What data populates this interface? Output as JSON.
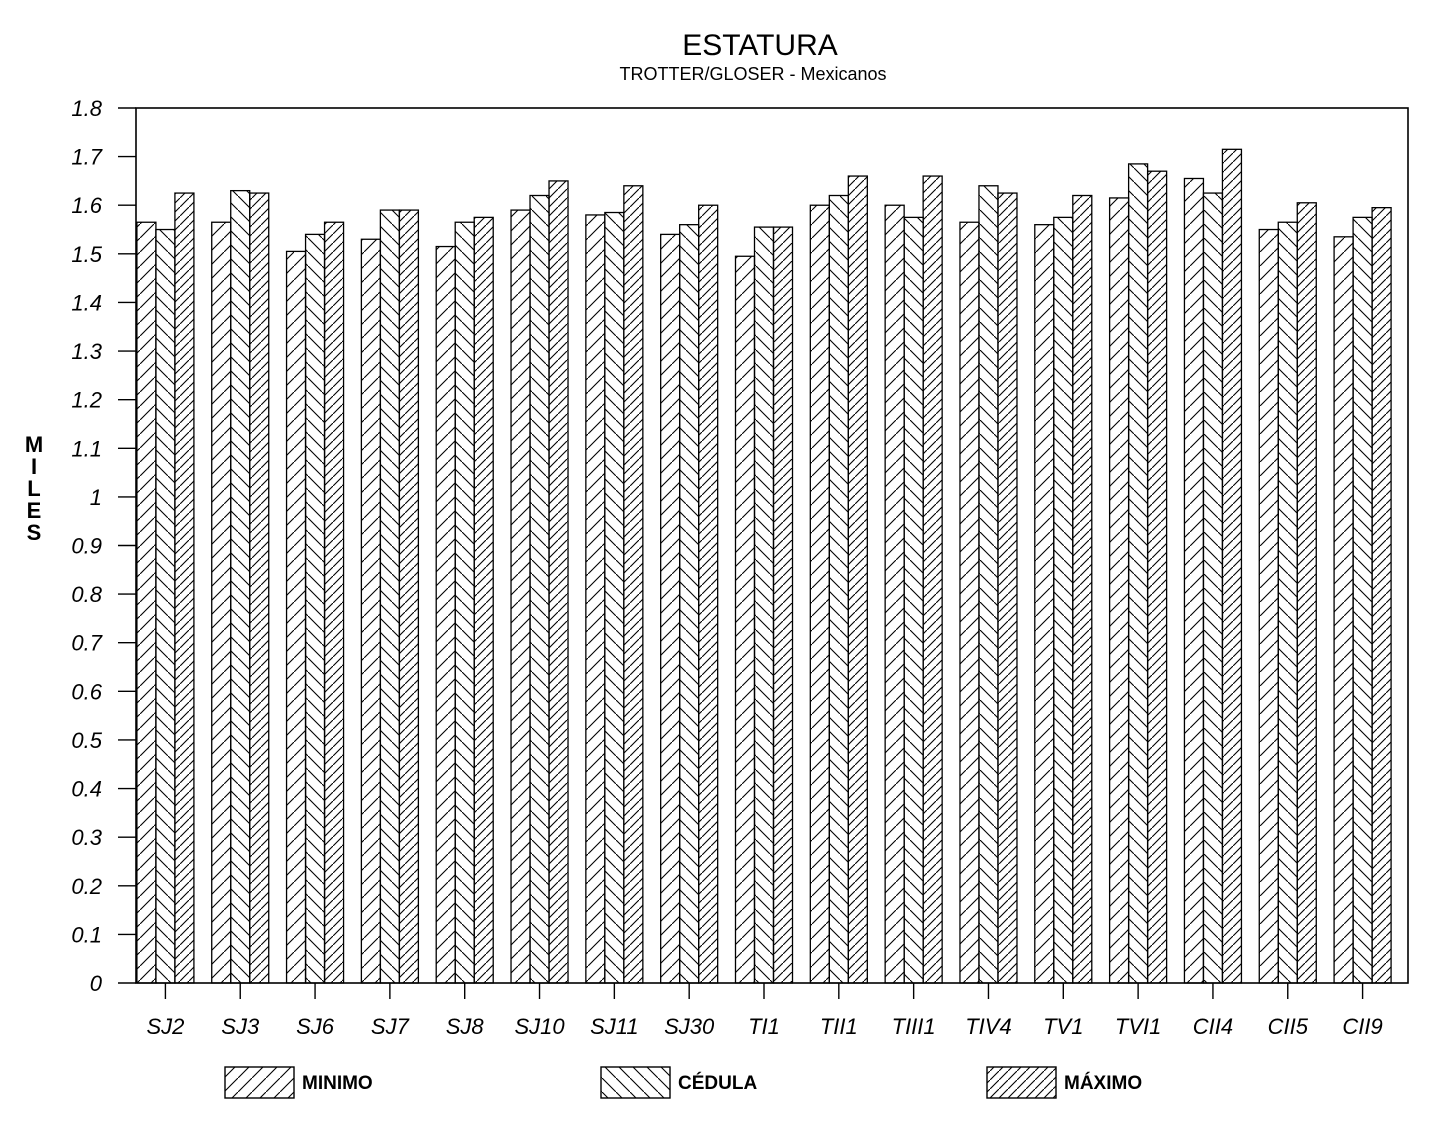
{
  "chart_data": {
    "type": "bar",
    "title": "ESTATURA",
    "subtitle": "TROTTER/GLOSER - Mexicanos",
    "xlabel": "",
    "ylabel": "MILES",
    "ylim": [
      0,
      1.8
    ],
    "yticks": [
      "0",
      "0.1",
      "0.2",
      "0.3",
      "0.4",
      "0.5",
      "0.6",
      "0.7",
      "0.8",
      "0.9",
      "1",
      "1.1",
      "1.2",
      "1.3",
      "1.4",
      "1.5",
      "1.6",
      "1.7",
      "1.8"
    ],
    "categories": [
      "SJ2",
      "SJ3",
      "SJ6",
      "SJ7",
      "SJ8",
      "SJ10",
      "SJ11",
      "SJ30",
      "TI1",
      "TII1",
      "TIII1",
      "TIV4",
      "TV1",
      "TVI1",
      "CII4",
      "CII5",
      "CII9"
    ],
    "series": [
      {
        "name": "MINIMO",
        "values": [
          1.565,
          1.565,
          1.505,
          1.53,
          1.515,
          1.59,
          1.58,
          1.54,
          1.495,
          1.6,
          1.6,
          1.565,
          1.56,
          1.615,
          1.655,
          1.55,
          1.535
        ]
      },
      {
        "name": "CÉDULA",
        "values": [
          1.55,
          1.63,
          1.54,
          1.59,
          1.565,
          1.62,
          1.585,
          1.56,
          1.555,
          1.62,
          1.575,
          1.64,
          1.575,
          1.685,
          1.625,
          1.565,
          1.575
        ]
      },
      {
        "name": "MÁXIMO",
        "values": [
          1.625,
          1.625,
          1.565,
          1.59,
          1.575,
          1.65,
          1.64,
          1.6,
          1.555,
          1.66,
          1.66,
          1.625,
          1.62,
          1.67,
          1.715,
          1.605,
          1.595
        ]
      }
    ],
    "legend_position": "bottom",
    "grid": false
  },
  "colors": {
    "ink": "#000000",
    "background": "#ffffff"
  }
}
